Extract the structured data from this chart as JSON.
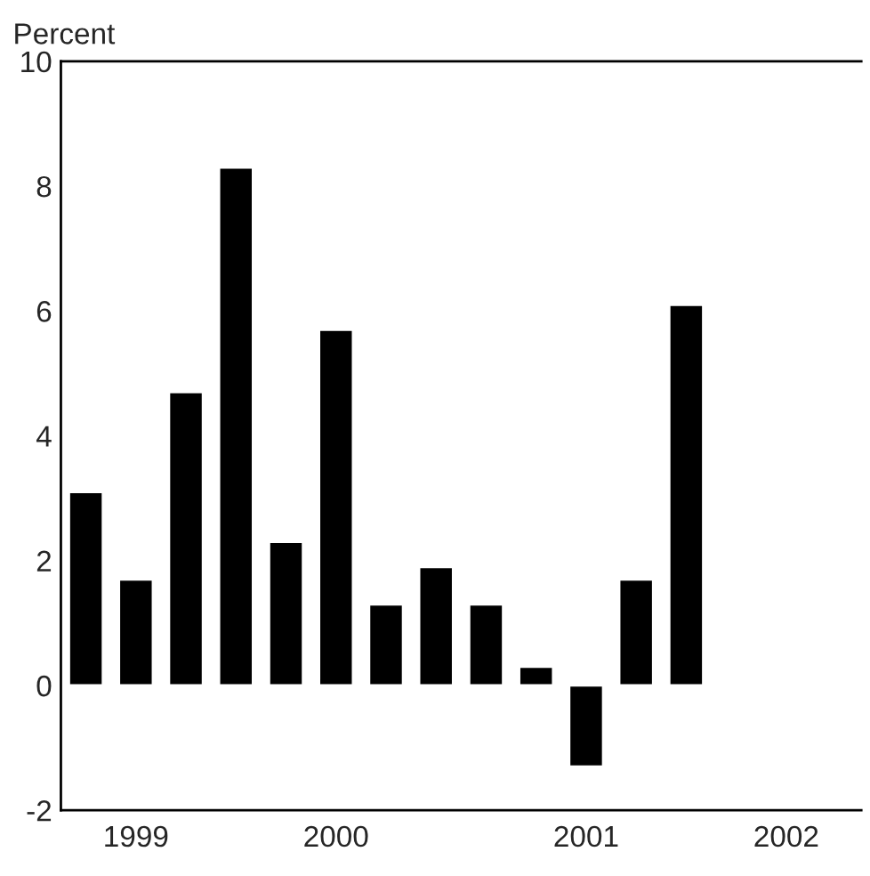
{
  "chart_data": {
    "type": "bar",
    "ylabel": "Percent",
    "categories": [
      null,
      "1999",
      null,
      null,
      null,
      "2000",
      null,
      null,
      null,
      null,
      "2001",
      null,
      null,
      null,
      "2002",
      null
    ],
    "values": [
      3.1,
      1.7,
      4.7,
      8.3,
      2.3,
      5.7,
      1.3,
      1.9,
      1.3,
      0.3,
      -1.3,
      1.7,
      6.1,
      null,
      null,
      null
    ],
    "color": "#000000",
    "ylim": [
      -2,
      10
    ],
    "yticks": [
      -2,
      0,
      2,
      4,
      6,
      8,
      10
    ],
    "grid": false
  }
}
